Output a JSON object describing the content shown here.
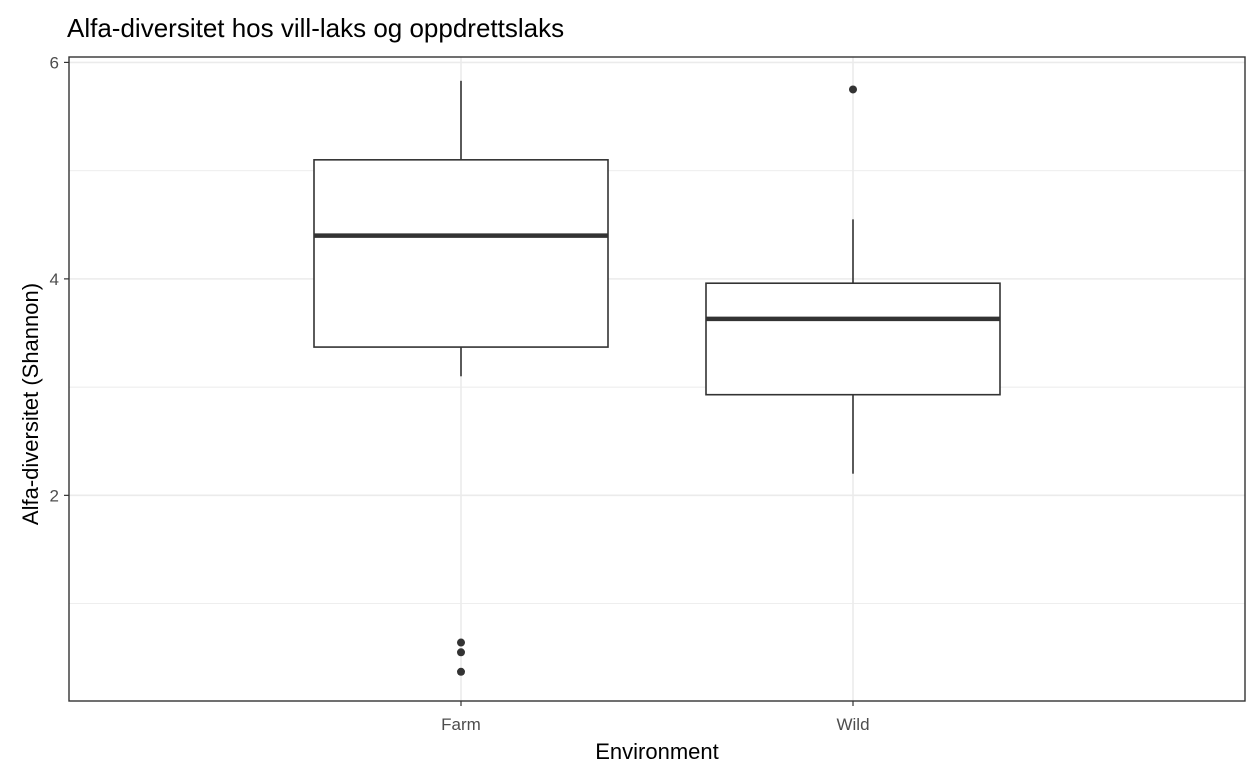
{
  "chart_data": {
    "type": "boxplot",
    "title": "Alfa-diversitet hos vill-laks og oppdrettslaks",
    "xlabel": "Environment",
    "ylabel": "Alfa-diversitet (Shannon)",
    "ylim": [
      0.1,
      6.05
    ],
    "yticks": [
      2,
      4,
      6
    ],
    "yticks_minor": [
      1,
      3,
      5
    ],
    "grid": true,
    "categories": [
      "Farm",
      "Wild"
    ],
    "boxes": [
      {
        "category": "Farm",
        "whisker_low": 3.1,
        "q1": 3.37,
        "median": 4.4,
        "q3": 5.1,
        "whisker_high": 5.83,
        "outliers": [
          0.37,
          0.55,
          0.64
        ]
      },
      {
        "category": "Wild",
        "whisker_low": 2.2,
        "q1": 2.93,
        "median": 3.63,
        "q3": 3.96,
        "whisker_high": 4.55,
        "outliers": [
          5.75
        ]
      }
    ],
    "colors": {
      "box_line": "#333333",
      "grid": "#ebebeb",
      "panel_border": "#333333",
      "outlier": "#333333"
    }
  }
}
